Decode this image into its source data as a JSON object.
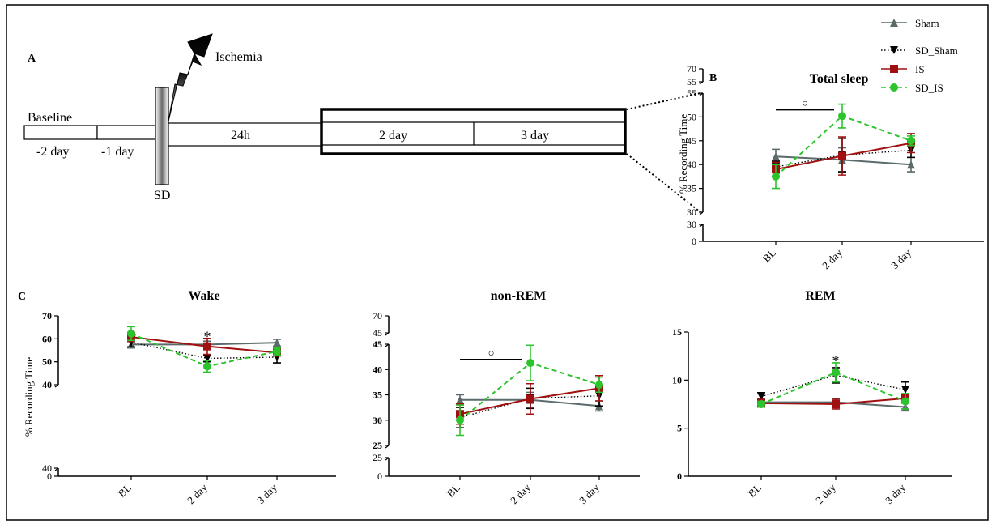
{
  "timeline": {
    "panel_label": "A",
    "event_label": "Ischemia",
    "sd_label": "SD",
    "baseline_label": "Baseline",
    "segments": [
      "-2 day",
      "-1 day",
      "24h",
      "2 day",
      "3 day"
    ]
  },
  "legend": [
    {
      "name": "Sham",
      "color": "#5b6b6b",
      "marker": "triangle-up",
      "dash": "solid"
    },
    {
      "name": "SD_Sham",
      "color": "#000000",
      "marker": "triangle-down",
      "dash": "dotted"
    },
    {
      "name": "IS",
      "color": "#a01010",
      "marker": "square",
      "dash": "solid"
    },
    {
      "name": "SD_IS",
      "color": "#2cc42c",
      "marker": "circle",
      "dash": "dashed"
    }
  ],
  "chart_data": [
    {
      "id": "B",
      "panel_label": "B",
      "type": "line",
      "title": "Total sleep",
      "ylabel": "% Recording Time",
      "categories": [
        "BL",
        "2 day",
        "3 day"
      ],
      "ylim": [
        30,
        55
      ],
      "yticks": [
        30,
        35,
        40,
        45,
        50,
        55
      ],
      "axis_break": {
        "lower_ticks": [
          0,
          30
        ],
        "upper_ticks": [
          55,
          70
        ]
      },
      "annotations": [
        {
          "text": "○",
          "bracket": [
            "BL",
            "2 day"
          ],
          "y": 51.5
        }
      ],
      "series": [
        {
          "name": "Sham",
          "values": [
            41.7,
            41.0,
            40.0
          ],
          "errors": [
            1.5,
            2.5,
            1.5
          ]
        },
        {
          "name": "SD_Sham",
          "values": [
            39.5,
            42.0,
            43.0
          ],
          "errors": [
            1.2,
            3.5,
            1.5
          ]
        },
        {
          "name": "IS",
          "values": [
            39.0,
            41.8,
            44.5
          ],
          "errors": [
            1.5,
            4.0,
            2.0
          ]
        },
        {
          "name": "SD_IS",
          "values": [
            37.5,
            50.2,
            45.0
          ],
          "errors": [
            2.5,
            2.5,
            1.0
          ]
        }
      ]
    },
    {
      "id": "C1",
      "panel_label": "C",
      "type": "line",
      "title": "Wake",
      "ylabel": "% Recording Time",
      "categories": [
        "BL",
        "2 day",
        "3 day"
      ],
      "ylim": [
        40,
        70
      ],
      "yticks": [
        40,
        50,
        60,
        70
      ],
      "axis_break": {
        "lower_ticks": [
          0,
          40
        ],
        "upper_ticks": []
      },
      "annotations": [
        {
          "text": "*",
          "x": "2 day",
          "y": 61
        }
      ],
      "series": [
        {
          "name": "Sham",
          "values": [
            57.5,
            57.5,
            58.3
          ],
          "errors": [
            1.5,
            1.5,
            1.5
          ]
        },
        {
          "name": "SD_Sham",
          "values": [
            58.5,
            51.5,
            52.0
          ],
          "errors": [
            2.0,
            1.5,
            2.5
          ]
        },
        {
          "name": "IS",
          "values": [
            60.8,
            56.7,
            54.0
          ],
          "errors": [
            2.0,
            3.5,
            1.5
          ]
        },
        {
          "name": "SD_IS",
          "values": [
            62.3,
            48.0,
            54.5
          ],
          "errors": [
            3.0,
            2.5,
            1.5
          ]
        }
      ]
    },
    {
      "id": "C2",
      "type": "line",
      "title": "non-REM",
      "categories": [
        "BL",
        "2 day",
        "3 day"
      ],
      "ylim": [
        25,
        45
      ],
      "yticks": [
        25,
        30,
        35,
        40,
        45
      ],
      "axis_break": {
        "lower_ticks": [
          0,
          25
        ],
        "upper_ticks": [
          45,
          70
        ]
      },
      "annotations": [
        {
          "text": "○",
          "bracket": [
            "BL",
            "2 day"
          ],
          "y": 42.0
        }
      ],
      "series": [
        {
          "name": "Sham",
          "values": [
            34.0,
            34.0,
            32.8
          ],
          "errors": [
            1.0,
            1.5,
            1.0
          ]
        },
        {
          "name": "SD_Sham",
          "values": [
            30.5,
            34.3,
            34.8
          ],
          "errors": [
            2.0,
            2.0,
            2.0
          ]
        },
        {
          "name": "IS",
          "values": [
            31.2,
            34.2,
            36.3
          ],
          "errors": [
            2.0,
            3.0,
            2.5
          ]
        },
        {
          "name": "SD_IS",
          "values": [
            30.0,
            41.3,
            37.0
          ],
          "errors": [
            3.0,
            3.5,
            1.5
          ]
        }
      ]
    },
    {
      "id": "C3",
      "type": "line",
      "title": "REM",
      "categories": [
        "BL",
        "2 day",
        "3 day"
      ],
      "ylim": [
        0,
        15
      ],
      "yticks": [
        0,
        5,
        10,
        15
      ],
      "annotations": [
        {
          "text": "*",
          "x": "2 day",
          "y": 12.0
        }
      ],
      "series": [
        {
          "name": "Sham",
          "values": [
            7.7,
            7.7,
            7.2
          ],
          "errors": [
            0.4,
            0.4,
            0.4
          ]
        },
        {
          "name": "SD_Sham",
          "values": [
            8.3,
            10.5,
            9.0
          ],
          "errors": [
            0.4,
            0.8,
            0.8
          ]
        },
        {
          "name": "IS",
          "values": [
            7.6,
            7.5,
            8.1
          ],
          "errors": [
            0.4,
            0.5,
            0.4
          ]
        },
        {
          "name": "SD_IS",
          "values": [
            7.5,
            10.8,
            7.8
          ],
          "errors": [
            0.3,
            1.0,
            0.8
          ]
        }
      ]
    }
  ]
}
